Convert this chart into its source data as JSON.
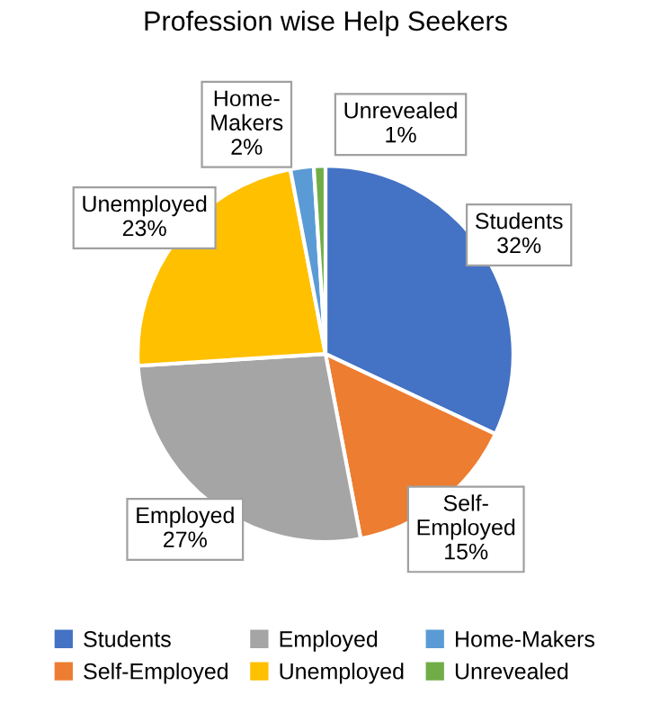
{
  "chart_data": {
    "type": "pie",
    "title": "Profession wise Help Seekers",
    "categories": [
      "Students",
      "Self-Employed",
      "Employed",
      "Unemployed",
      "Home-Makers",
      "Unrevealed"
    ],
    "values": [
      32,
      15,
      27,
      23,
      2,
      1
    ],
    "colors": [
      "#4472c4",
      "#ed7d31",
      "#a5a5a5",
      "#ffc000",
      "#5b9bd5",
      "#70ad47"
    ],
    "value_labels": [
      "32%",
      "15%",
      "27%",
      "23%",
      "2%",
      "1%"
    ],
    "legend": "bottom"
  }
}
